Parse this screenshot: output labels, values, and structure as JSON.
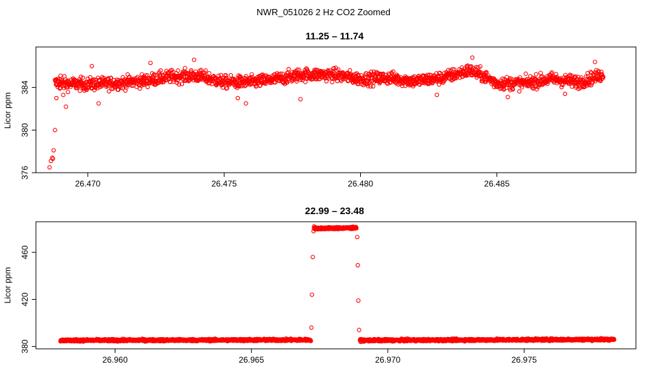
{
  "figure_title": "NWR_051026  2 Hz CO2 Zoomed",
  "colors": {
    "points": "#ff0000",
    "axes": "#000000",
    "background": "#ffffff"
  },
  "chart_data": [
    {
      "type": "scatter",
      "title": "11.25 – 11.74",
      "xlabel": "",
      "ylabel": "Licor ppm",
      "xlim": [
        26.4681,
        26.4901
      ],
      "ylim": [
        376,
        387.8
      ],
      "x_ticks": [
        26.47,
        26.475,
        26.48,
        26.485
      ],
      "x_tick_labels": [
        "26.470",
        "26.475",
        "26.480",
        "26.485"
      ],
      "y_ticks": [
        376,
        380,
        384
      ],
      "y_tick_labels": [
        "376",
        "380",
        "384"
      ],
      "grid": false,
      "legend": "none",
      "series": [
        {
          "marker": "open-circle",
          "points": [
            [
              26.4686,
              376.5
            ],
            [
              26.46865,
              377.1
            ],
            [
              26.4687,
              377.4
            ],
            [
              26.46872,
              377.3
            ],
            [
              26.46875,
              378.1
            ],
            [
              26.4688,
              380.0
            ],
            [
              26.46885,
              383.0
            ],
            [
              26.4689,
              384.8
            ],
            [
              26.469,
              385.1
            ],
            [
              26.4691,
              383.3
            ],
            [
              26.4692,
              382.2
            ],
            [
              26.47015,
              386.0
            ],
            [
              26.4704,
              382.5
            ],
            [
              26.4723,
              386.3
            ],
            [
              26.4739,
              386.6
            ],
            [
              26.4755,
              383.0
            ],
            [
              26.4758,
              382.5
            ],
            [
              26.4778,
              382.9
            ],
            [
              26.4828,
              383.3
            ],
            [
              26.4841,
              386.8
            ],
            [
              26.4854,
              383.1
            ],
            [
              26.4875,
              383.4
            ],
            [
              26.4886,
              386.4
            ]
          ],
          "baseline": [
            [
              26.4688,
              384.4
            ],
            [
              26.47,
              384.3
            ],
            [
              26.471,
              384.4
            ],
            [
              26.472,
              384.6
            ],
            [
              26.473,
              385.0
            ],
            [
              26.474,
              385.1
            ],
            [
              26.475,
              384.5
            ],
            [
              26.476,
              384.5
            ],
            [
              26.477,
              384.8
            ],
            [
              26.4778,
              385.2
            ],
            [
              26.479,
              385.2
            ],
            [
              26.48,
              384.8
            ],
            [
              26.481,
              384.9
            ],
            [
              26.482,
              384.6
            ],
            [
              26.483,
              384.9
            ],
            [
              26.484,
              385.6
            ],
            [
              26.4845,
              385.1
            ],
            [
              26.485,
              384.4
            ],
            [
              26.486,
              384.4
            ],
            [
              26.487,
              384.8
            ],
            [
              26.488,
              384.5
            ],
            [
              26.4889,
              385.2
            ]
          ],
          "noise": 0.6,
          "count": 1700
        }
      ]
    },
    {
      "type": "scatter",
      "title": "22.99 – 23.48",
      "xlabel": "",
      "ylabel": "Licor ppm",
      "xlim": [
        26.9571,
        26.9791
      ],
      "ylim": [
        378,
        486
      ],
      "x_ticks": [
        26.96,
        26.965,
        26.97,
        26.975
      ],
      "x_tick_labels": [
        "26.960",
        "26.965",
        "26.970",
        "26.975"
      ],
      "y_ticks": [
        380,
        420,
        460
      ],
      "y_tick_labels": [
        "380",
        "420",
        "460"
      ],
      "grid": false,
      "legend": "none",
      "series": [
        {
          "marker": "open-circle",
          "points": [
            [
              26.9672,
              396
            ],
            [
              26.96722,
              424
            ],
            [
              26.96725,
              456
            ],
            [
              26.96728,
              478
            ],
            [
              26.9673,
              482
            ],
            [
              26.96888,
              473
            ],
            [
              26.9689,
              449
            ],
            [
              26.96892,
              419
            ],
            [
              26.96895,
              394
            ]
          ],
          "segments": [
            {
              "x_start": 26.958,
              "x_end": 26.96718,
              "y_start": 385.2,
              "y_end": 385.6,
              "noise": 0.9,
              "count": 1100
            },
            {
              "x_start": 26.9673,
              "x_end": 26.96885,
              "y_start": 480.3,
              "y_end": 480.8,
              "noise": 0.8,
              "count": 260
            },
            {
              "x_start": 26.96898,
              "x_end": 26.9783,
              "y_start": 385.2,
              "y_end": 386.0,
              "noise": 0.9,
              "count": 1150
            }
          ]
        }
      ]
    }
  ]
}
